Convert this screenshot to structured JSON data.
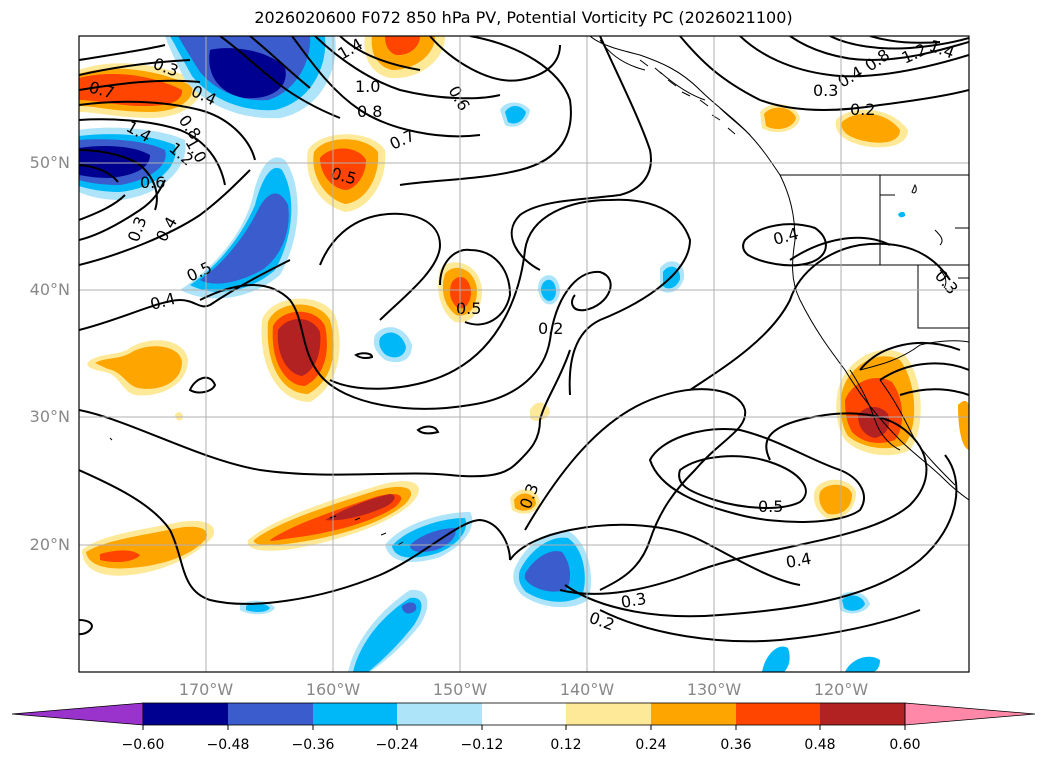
{
  "title": "2026020600 F072 850 hPa PV, Potential Vorticity PC (2026021100)",
  "map": {
    "lon_range": [
      -180,
      -110
    ],
    "lat_range": [
      10,
      60
    ],
    "lat_labels": [
      "50°N",
      "40°N",
      "30°N",
      "20°N"
    ],
    "lon_labels": [
      "170°W",
      "160°W",
      "150°W",
      "140°W",
      "130°W",
      "120°W"
    ],
    "colors": {
      "neg_extreme": "#9933cc",
      "neg060": "#000090",
      "neg048": "#3a5ccc",
      "neg036": "#00b8f8",
      "neg024": "#aee4fa",
      "pos012": "#fee999",
      "pos024": "#ffa500",
      "pos036": "#ff4500",
      "pos048": "#b22222",
      "pos_extreme": "#ff88a8",
      "grid": "#b0b0b0"
    },
    "contour_labels": [
      "0.3",
      "0.4",
      "0.7",
      "1.4",
      "1.2",
      "1.0",
      "0.8",
      "0.6",
      "0.5",
      "0.2"
    ]
  },
  "colorbar": {
    "ticks": [
      "−0.60",
      "−0.48",
      "−0.36",
      "−0.24",
      "−0.12",
      "0.12",
      "0.24",
      "0.36",
      "0.48",
      "0.60"
    ]
  }
}
